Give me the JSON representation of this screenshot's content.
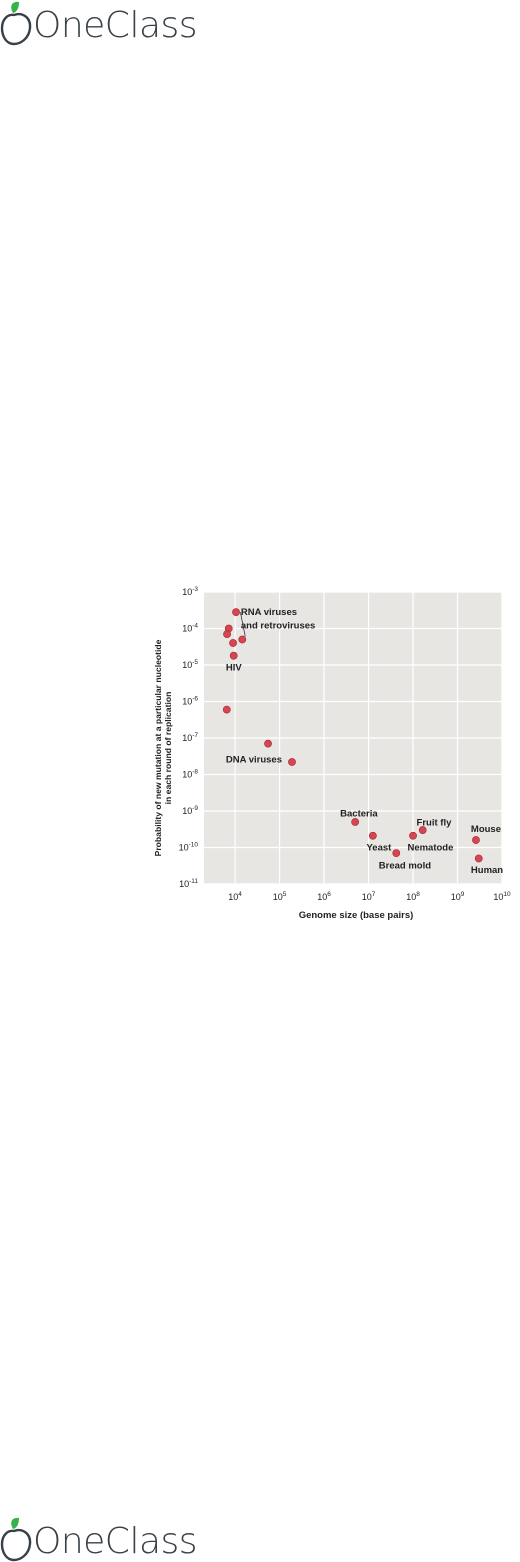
{
  "brand": {
    "name": "OneClass",
    "icon": "apple-leaf-icon",
    "colors": {
      "leaf": "#35b34a",
      "text": "#3a4047"
    }
  },
  "chart_data": {
    "type": "scatter",
    "title": "",
    "xlabel": "Genome size (base pairs)",
    "ylabel_lines": [
      "Probability of new mutation at a particular nucleotide",
      "in each round of replication"
    ],
    "x_scale": "log",
    "y_scale": "log",
    "xlim": [
      2000,
      10000000000
    ],
    "ylim": [
      1e-11,
      0.001
    ],
    "x_ticks": [
      {
        "value": 10000,
        "base": "10",
        "exp": "4"
      },
      {
        "value": 100000,
        "base": "10",
        "exp": "5"
      },
      {
        "value": 1000000,
        "base": "10",
        "exp": "6"
      },
      {
        "value": 10000000,
        "base": "10",
        "exp": "7"
      },
      {
        "value": 100000000,
        "base": "10",
        "exp": "8"
      },
      {
        "value": 1000000000,
        "base": "10",
        "exp": "9"
      },
      {
        "value": 10000000000,
        "base": "10",
        "exp": "10"
      }
    ],
    "y_ticks": [
      {
        "value": 0.001,
        "base": "10",
        "exp": "-3"
      },
      {
        "value": 0.0001,
        "base": "10",
        "exp": "-4"
      },
      {
        "value": 1e-05,
        "base": "10",
        "exp": "-5"
      },
      {
        "value": 1e-06,
        "base": "10",
        "exp": "-6"
      },
      {
        "value": 1e-07,
        "base": "10",
        "exp": "-7"
      },
      {
        "value": 1e-08,
        "base": "10",
        "exp": "-8"
      },
      {
        "value": 1e-09,
        "base": "10",
        "exp": "-9"
      },
      {
        "value": 1e-10,
        "base": "10",
        "exp": "-10"
      },
      {
        "value": 1e-11,
        "base": "10",
        "exp": "-11"
      }
    ],
    "grid": true,
    "colors": {
      "marker": "#d64550",
      "marker_stroke": "#9e2a33",
      "plot_bg": "#e8e6e3",
      "grid": "#ffffff",
      "text": "#222222"
    },
    "points": [
      {
        "x": 10500,
        "y": 0.00028
      },
      {
        "x": 7200,
        "y": 0.0001
      },
      {
        "x": 6600,
        "y": 7e-05
      },
      {
        "x": 14500,
        "y": 5e-05
      },
      {
        "x": 9000,
        "y": 4e-05
      },
      {
        "x": 9300,
        "y": 1.8e-05
      },
      {
        "x": 6500,
        "y": 6e-07
      },
      {
        "x": 55000,
        "y": 7e-08
      },
      {
        "x": 190000,
        "y": 2.2e-08
      },
      {
        "x": 5000000,
        "y": 5e-10
      },
      {
        "x": 12500000,
        "y": 2.1e-10
      },
      {
        "x": 42000000,
        "y": 7e-11
      },
      {
        "x": 100000000,
        "y": 2.1e-10
      },
      {
        "x": 165000000,
        "y": 3e-10
      },
      {
        "x": 2600000000,
        "y": 1.6e-10
      },
      {
        "x": 3000000000,
        "y": 5e-11
      }
    ],
    "labels": [
      {
        "text": "RNA viruses",
        "x": 13500,
        "y": 0.00028
      },
      {
        "text": "and retroviruses",
        "x": 13500,
        "y": 0.00012
      },
      {
        "text": "HIV",
        "x": 6200,
        "y": 8.5e-06
      },
      {
        "text": "DNA viruses",
        "x": 6200,
        "y": 2.6e-08
      },
      {
        "text": "Bacteria",
        "x": 2300000,
        "y": 8.5e-10
      },
      {
        "text": "Yeast",
        "x": 9000000,
        "y": 1e-10
      },
      {
        "text": "Bread mold",
        "x": 17000000,
        "y": 3.2e-11
      },
      {
        "text": "Nematode",
        "x": 75000000,
        "y": 1e-10
      },
      {
        "text": "Fruit fly",
        "x": 120000000,
        "y": 4.8e-10
      },
      {
        "text": "Mouse",
        "x": 2000000000,
        "y": 3.2e-10
      },
      {
        "text": "Human",
        "x": 2000000000,
        "y": 2.4e-11
      }
    ]
  }
}
